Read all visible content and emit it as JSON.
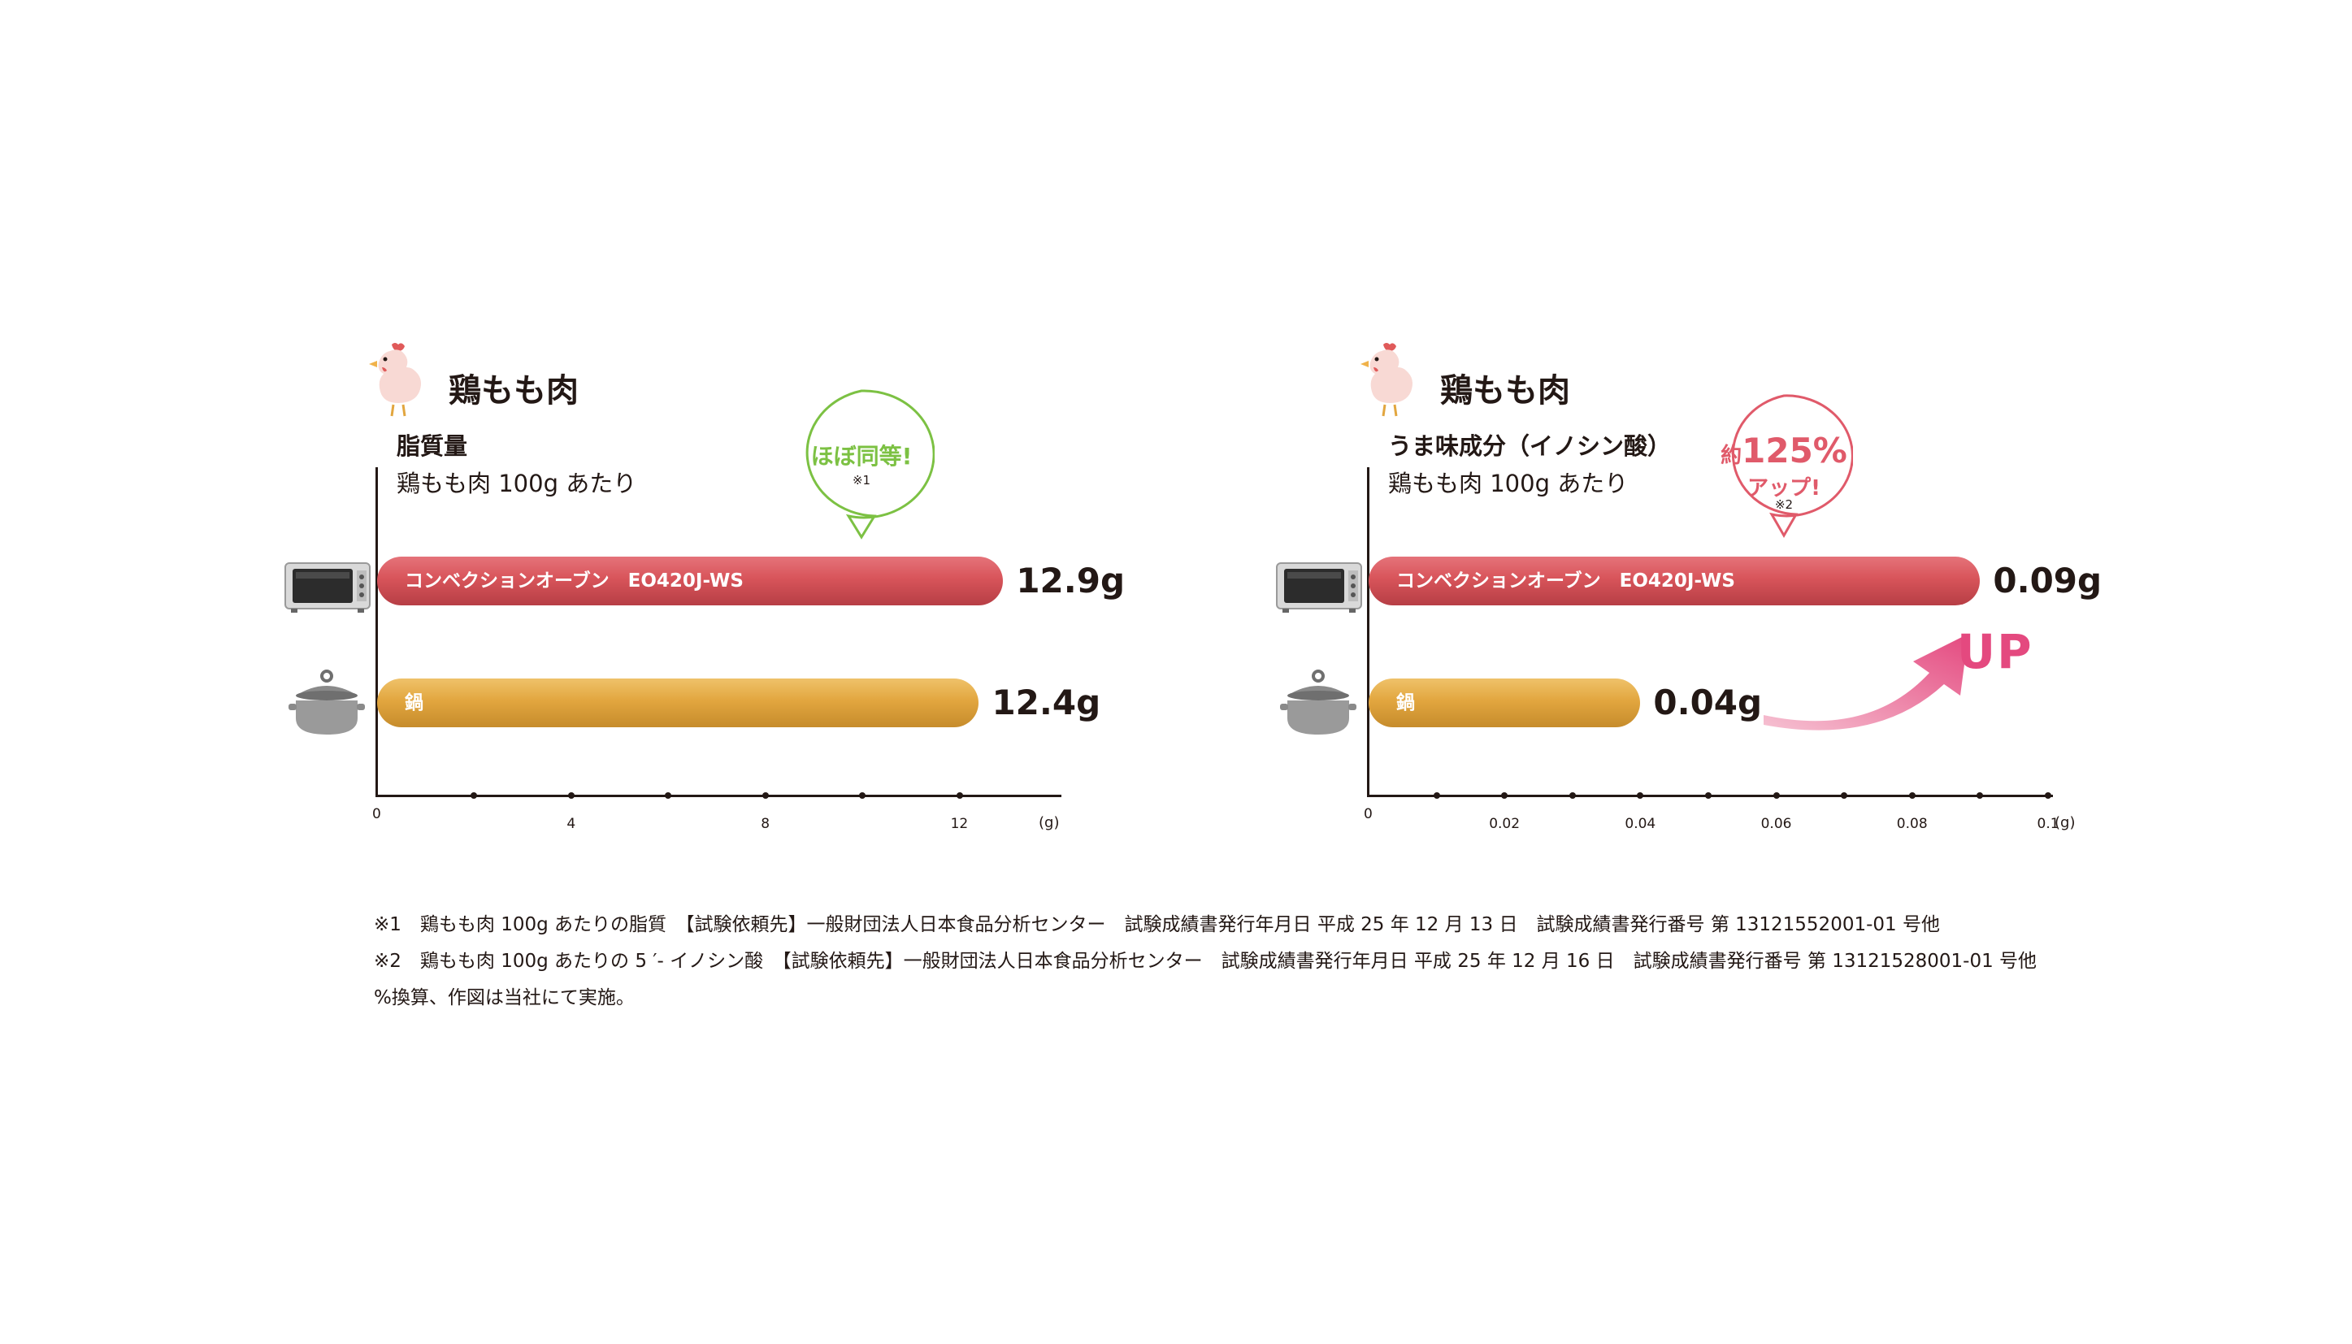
{
  "colors": {
    "oven_bar": "#d8545a",
    "pot_bar": "#e2a63f",
    "green_callout": "#7cc143",
    "pink_callout": "#e05a6a",
    "up_arrow": "#e4497f"
  },
  "icons": [
    "hen-icon",
    "oven-icon",
    "pot-icon",
    "up-arrow-icon"
  ],
  "chart_data": [
    {
      "type": "bar",
      "orientation": "horizontal",
      "title": "鶏もも肉",
      "metric": "脂質量",
      "basis": "鶏もも肉 100g あたり",
      "categories": [
        "コンベクションオーブン　EO420J-WS",
        "鍋"
      ],
      "values": [
        12.9,
        12.4
      ],
      "value_labels": [
        "12.9g",
        "12.4g"
      ],
      "xlim": [
        0,
        14
      ],
      "x_ticks": [
        "0",
        "4",
        "8",
        "12"
      ],
      "x_tick_values": [
        0,
        4,
        8,
        12
      ],
      "x_minor_ticks": [
        2,
        6,
        10
      ],
      "x_unit": "(g)",
      "callout": {
        "text": "ほぼ同等!",
        "note": "※1"
      }
    },
    {
      "type": "bar",
      "orientation": "horizontal",
      "title": "鶏もも肉",
      "metric": "うま味成分（イノシン酸）",
      "basis": "鶏もも肉 100g あたり",
      "categories": [
        "コンベクションオーブン　EO420J-WS",
        "鍋"
      ],
      "values": [
        0.09,
        0.04
      ],
      "value_labels": [
        "0.09g",
        "0.04g"
      ],
      "xlim": [
        0,
        0.1
      ],
      "x_ticks": [
        "0",
        "0.02",
        "0.04",
        "0.06",
        "0.08",
        "0.1"
      ],
      "x_tick_values": [
        0,
        0.02,
        0.04,
        0.06,
        0.08,
        0.1
      ],
      "x_minor_ticks": [
        0.01,
        0.03,
        0.05,
        0.07,
        0.09
      ],
      "x_unit": "(g)",
      "callout": {
        "line1_prefix": "約",
        "line1_number": "125%",
        "line2": "アップ!",
        "note": "※2"
      },
      "annotation": "UP"
    }
  ],
  "footnotes": [
    "※1　鶏もも肉 100g あたりの脂質　【試験依頼先】一般財団法人日本食品分析センター　試験成績書発行年月日 平成 25 年 12 月 13 日　試験成績書発行番号 第 13121552001-01 号他",
    "※2　鶏もも肉 100g あたりの 5 ′- イノシン酸　【試験依頼先】一般財団法人日本食品分析センター　試験成績書発行年月日 平成 25 年 12 月 16 日　試験成績書発行番号 第 13121528001-01 号他",
    "%換算、作図は当社にて実施。"
  ]
}
